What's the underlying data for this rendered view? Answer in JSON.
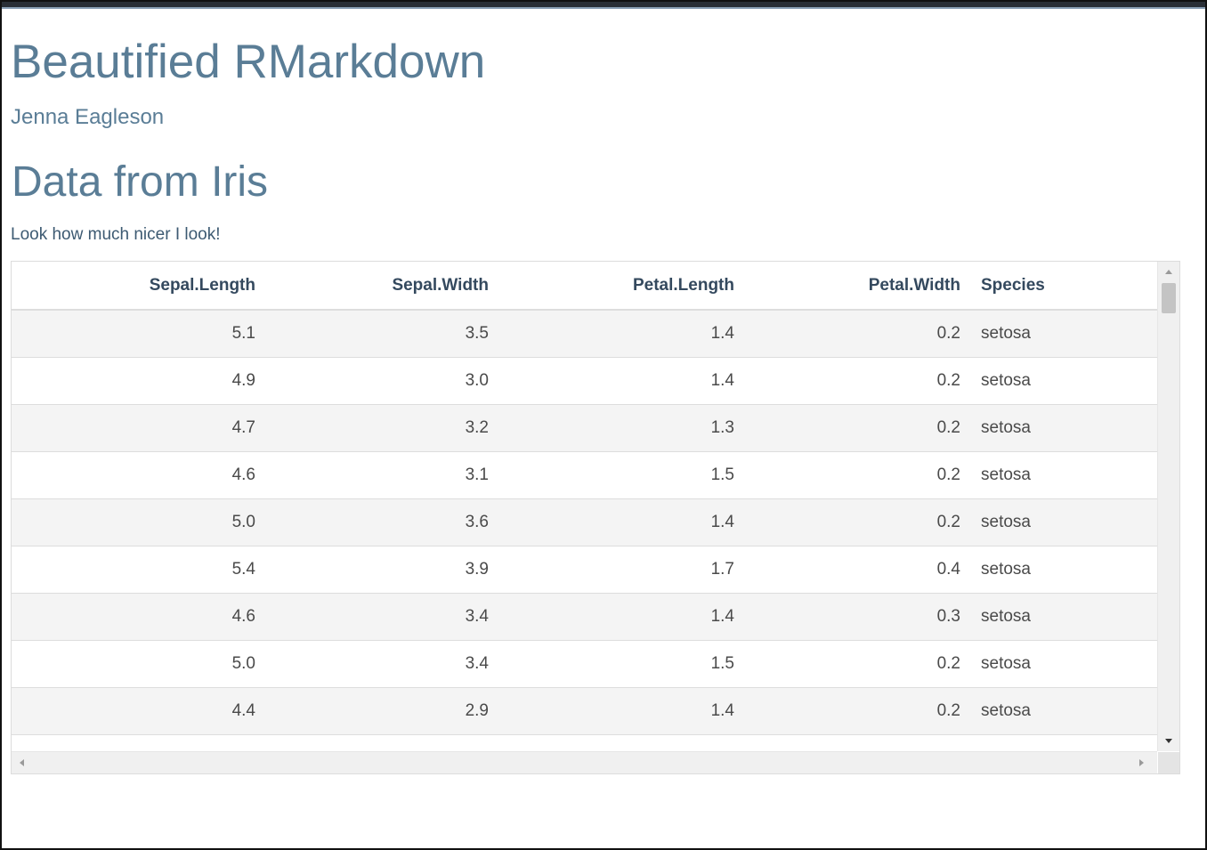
{
  "document": {
    "title": "Beautified RMarkdown",
    "author": "Jenna Eagleson",
    "section_heading": "Data from Iris",
    "paragraph": "Look how much nicer I look!"
  },
  "table": {
    "columns": [
      "Sepal.Length",
      "Sepal.Width",
      "Petal.Length",
      "Petal.Width",
      "Species"
    ],
    "rows": [
      [
        "5.1",
        "3.5",
        "1.4",
        "0.2",
        "setosa"
      ],
      [
        "4.9",
        "3.0",
        "1.4",
        "0.2",
        "setosa"
      ],
      [
        "4.7",
        "3.2",
        "1.3",
        "0.2",
        "setosa"
      ],
      [
        "4.6",
        "3.1",
        "1.5",
        "0.2",
        "setosa"
      ],
      [
        "5.0",
        "3.6",
        "1.4",
        "0.2",
        "setosa"
      ],
      [
        "5.4",
        "3.9",
        "1.7",
        "0.4",
        "setosa"
      ],
      [
        "4.6",
        "3.4",
        "1.4",
        "0.3",
        "setosa"
      ],
      [
        "5.0",
        "3.4",
        "1.5",
        "0.2",
        "setosa"
      ],
      [
        "4.4",
        "2.9",
        "1.4",
        "0.2",
        "setosa"
      ]
    ]
  },
  "colors": {
    "heading": "#5a7d96",
    "paragraph": "#3d5a72",
    "table_header_text": "#34495e",
    "row_stripe": "#f4f4f4"
  },
  "icons": {
    "scroll_up": "arrow-up-icon",
    "scroll_down": "arrow-down-icon",
    "scroll_left": "arrow-left-icon",
    "scroll_right": "arrow-right-icon"
  }
}
